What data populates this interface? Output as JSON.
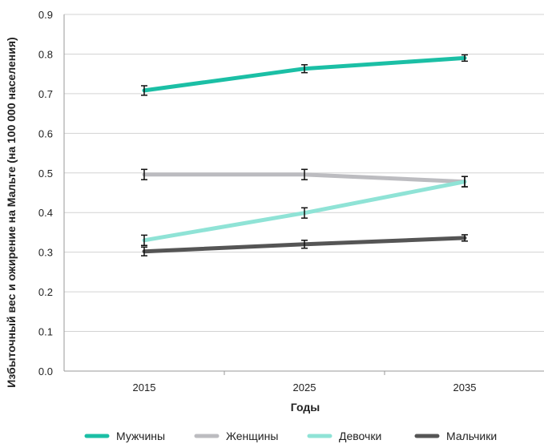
{
  "chart_data": {
    "type": "line",
    "title": "",
    "xlabel": "Годы",
    "ylabel": "Избыточный вес и ожирение на Мальте (на 100 000 населения)",
    "x": [
      "2015",
      "2025",
      "2035"
    ],
    "ylim": [
      0,
      0.9
    ],
    "yticks": [
      "0.0",
      "0.1",
      "0.2",
      "0.3",
      "0.4",
      "0.5",
      "0.6",
      "0.7",
      "0.8",
      "0.9"
    ],
    "grid": "horizontal",
    "legend_position": "bottom",
    "error_bars": true,
    "series": [
      {
        "name": "Мужчины",
        "color": "#1bbfa5",
        "values": [
          0.708,
          0.763,
          0.79
        ],
        "errors": [
          0.012,
          0.01,
          0.008
        ]
      },
      {
        "name": "Женщины",
        "color": "#bcbcc0",
        "values": [
          0.496,
          0.496,
          0.478
        ],
        "errors": [
          0.013,
          0.013,
          0.013
        ]
      },
      {
        "name": "Девочки",
        "color": "#8fe3d6",
        "values": [
          0.33,
          0.399,
          0.478
        ],
        "errors": [
          0.013,
          0.013,
          0.013
        ]
      },
      {
        "name": "Мальчики",
        "color": "#555555",
        "values": [
          0.302,
          0.32,
          0.336
        ],
        "errors": [
          0.011,
          0.01,
          0.008
        ]
      }
    ]
  }
}
